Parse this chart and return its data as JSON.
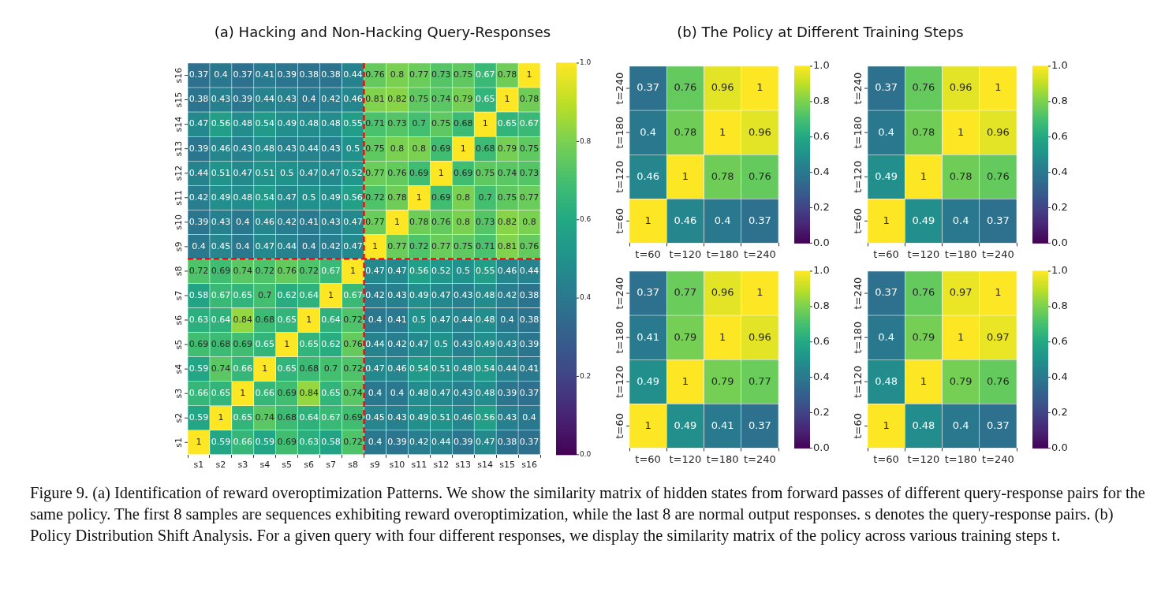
{
  "chart_data": [
    {
      "type": "heatmap",
      "title": "(a) Hacking and Non-Hacking Query-Responses",
      "categories": [
        "s1",
        "s2",
        "s3",
        "s4",
        "s5",
        "s6",
        "s7",
        "s8",
        "s9",
        "s10",
        "s11",
        "s12",
        "s13",
        "s14",
        "s15",
        "s16"
      ],
      "y_categories": [
        "s16",
        "s15",
        "s14",
        "s13",
        "s12",
        "s11",
        "s10",
        "s9",
        "s8",
        "s7",
        "s6",
        "s5",
        "s4",
        "s3",
        "s2",
        "s1"
      ],
      "cells": [
        [
          0.37,
          0.4,
          0.37,
          0.41,
          0.39,
          0.38,
          0.38,
          0.44,
          0.76,
          0.8,
          0.77,
          0.73,
          0.75,
          0.67,
          0.78,
          1
        ],
        [
          0.38,
          0.43,
          0.39,
          0.44,
          0.43,
          0.4,
          0.42,
          0.46,
          0.81,
          0.82,
          0.75,
          0.74,
          0.79,
          0.65,
          1,
          0.78
        ],
        [
          0.47,
          0.56,
          0.48,
          0.54,
          0.49,
          0.48,
          0.48,
          0.55,
          0.71,
          0.73,
          0.7,
          0.75,
          0.68,
          1,
          0.65,
          0.67
        ],
        [
          0.39,
          0.46,
          0.43,
          0.48,
          0.43,
          0.44,
          0.43,
          0.5,
          0.75,
          0.8,
          0.8,
          0.69,
          1,
          0.68,
          0.79,
          0.75
        ],
        [
          0.44,
          0.51,
          0.47,
          0.51,
          0.5,
          0.47,
          0.47,
          0.52,
          0.77,
          0.76,
          0.69,
          1,
          0.69,
          0.75,
          0.74,
          0.73
        ],
        [
          0.42,
          0.49,
          0.48,
          0.54,
          0.47,
          0.5,
          0.49,
          0.56,
          0.72,
          0.78,
          1,
          0.69,
          0.8,
          0.7,
          0.75,
          0.77
        ],
        [
          0.39,
          0.43,
          0.4,
          0.46,
          0.42,
          0.41,
          0.43,
          0.47,
          0.77,
          1,
          0.78,
          0.76,
          0.8,
          0.73,
          0.82,
          0.8
        ],
        [
          0.4,
          0.45,
          0.4,
          0.47,
          0.44,
          0.4,
          0.42,
          0.47,
          1,
          0.77,
          0.72,
          0.77,
          0.75,
          0.71,
          0.81,
          0.76
        ],
        [
          0.72,
          0.69,
          0.74,
          0.72,
          0.76,
          0.72,
          0.67,
          1,
          0.47,
          0.47,
          0.56,
          0.52,
          0.5,
          0.55,
          0.46,
          0.44
        ],
        [
          0.58,
          0.67,
          0.65,
          0.7,
          0.62,
          0.64,
          1,
          0.67,
          0.42,
          0.43,
          0.49,
          0.47,
          0.43,
          0.48,
          0.42,
          0.38
        ],
        [
          0.63,
          0.64,
          0.84,
          0.68,
          0.65,
          1,
          0.64,
          0.72,
          0.4,
          0.41,
          0.5,
          0.47,
          0.44,
          0.48,
          0.4,
          0.38
        ],
        [
          0.69,
          0.68,
          0.69,
          0.65,
          1,
          0.65,
          0.62,
          0.76,
          0.44,
          0.42,
          0.47,
          0.5,
          0.43,
          0.49,
          0.43,
          0.39
        ],
        [
          0.59,
          0.74,
          0.66,
          1,
          0.65,
          0.68,
          0.7,
          0.72,
          0.47,
          0.46,
          0.54,
          0.51,
          0.48,
          0.54,
          0.44,
          0.41
        ],
        [
          0.66,
          0.65,
          1,
          0.66,
          0.69,
          0.84,
          0.65,
          0.74,
          0.4,
          0.4,
          0.48,
          0.47,
          0.43,
          0.48,
          0.39,
          0.37
        ],
        [
          0.59,
          1,
          0.65,
          0.74,
          0.68,
          0.64,
          0.67,
          0.69,
          0.45,
          0.43,
          0.49,
          0.51,
          0.46,
          0.56,
          0.43,
          0.4
        ],
        [
          1,
          0.59,
          0.66,
          0.59,
          0.69,
          0.63,
          0.58,
          0.72,
          0.4,
          0.39,
          0.42,
          0.44,
          0.39,
          0.47,
          0.38,
          0.37
        ]
      ],
      "data_labels": true,
      "clim": [
        0,
        1
      ],
      "cticks": [
        {
          "value": 0,
          "label": "0.0"
        },
        {
          "value": 0.2,
          "label": "0.2"
        },
        {
          "value": 0.4,
          "label": "0.4"
        },
        {
          "value": 0.6,
          "label": "0.6"
        },
        {
          "value": 0.8,
          "label": "0.8"
        },
        {
          "value": 1,
          "label": "1.0"
        }
      ],
      "annotations": [
        "Figure 9. (a) Identification of reward overoptimization Patterns. We show the similarity matrix of hidden states from forward passes of different query-response pairs for the same policy. The first 8 samples are sequences exhibiting reward overoptimization, while the last 8 are normal output responses. s denotes the query-response pairs. (b) Policy Distribution Shift Analysis. For a given query with four different responses, we display the similarity matrix of the policy across various training steps t."
      ]
    },
    {
      "type": "heatmap",
      "title": "(b) The Policy at Different Training Steps",
      "categories": [
        "t=60",
        "t=120",
        "t=180",
        "t=240"
      ],
      "y_categories": [
        "t=240",
        "t=180",
        "t=120",
        "t=60"
      ],
      "cells": [
        [
          0.37,
          0.76,
          0.96,
          1
        ],
        [
          0.4,
          0.78,
          1,
          0.96
        ],
        [
          0.46,
          1,
          0.78,
          0.76
        ],
        [
          1,
          0.46,
          0.4,
          0.37
        ]
      ],
      "data_labels": true,
      "clim": [
        0,
        1
      ],
      "cticks": [
        {
          "value": 0,
          "label": "0.0"
        },
        {
          "value": 0.2,
          "label": "0.2"
        },
        {
          "value": 0.4,
          "label": "0.4"
        },
        {
          "value": 0.6,
          "label": "0.6"
        },
        {
          "value": 0.8,
          "label": "0.8"
        },
        {
          "value": 1,
          "label": "1.0"
        }
      ]
    },
    {
      "type": "heatmap",
      "categories": [
        "t=60",
        "t=120",
        "t=180",
        "t=240"
      ],
      "y_categories": [
        "t=240",
        "t=180",
        "t=120",
        "t=60"
      ],
      "cells": [
        [
          0.37,
          0.76,
          0.96,
          1
        ],
        [
          0.4,
          0.78,
          1,
          0.96
        ],
        [
          0.49,
          1,
          0.78,
          0.76
        ],
        [
          1,
          0.49,
          0.4,
          0.37
        ]
      ],
      "data_labels": true,
      "clim": [
        0,
        1
      ],
      "cticks": [
        {
          "value": 0,
          "label": "0.0"
        },
        {
          "value": 0.2,
          "label": "0.2"
        },
        {
          "value": 0.4,
          "label": "0.4"
        },
        {
          "value": 0.6,
          "label": "0.6"
        },
        {
          "value": 0.8,
          "label": "0.8"
        },
        {
          "value": 1,
          "label": "1.0"
        }
      ]
    },
    {
      "type": "heatmap",
      "categories": [
        "t=60",
        "t=120",
        "t=180",
        "t=240"
      ],
      "y_categories": [
        "t=240",
        "t=180",
        "t=120",
        "t=60"
      ],
      "cells": [
        [
          0.37,
          0.77,
          0.96,
          1
        ],
        [
          0.41,
          0.79,
          1,
          0.96
        ],
        [
          0.49,
          1,
          0.79,
          0.77
        ],
        [
          1,
          0.49,
          0.41,
          0.37
        ]
      ],
      "data_labels": true,
      "clim": [
        0,
        1
      ],
      "cticks": [
        {
          "value": 0,
          "label": "0.0"
        },
        {
          "value": 0.2,
          "label": "0.2"
        },
        {
          "value": 0.4,
          "label": "0.4"
        },
        {
          "value": 0.6,
          "label": "0.6"
        },
        {
          "value": 0.8,
          "label": "0.8"
        },
        {
          "value": 1,
          "label": "1.0"
        }
      ]
    },
    {
      "type": "heatmap",
      "categories": [
        "t=60",
        "t=120",
        "t=180",
        "t=240"
      ],
      "y_categories": [
        "t=240",
        "t=180",
        "t=120",
        "t=60"
      ],
      "cells": [
        [
          0.37,
          0.76,
          0.97,
          1
        ],
        [
          0.4,
          0.79,
          1,
          0.97
        ],
        [
          0.48,
          1,
          0.79,
          0.76
        ],
        [
          1,
          0.48,
          0.4,
          0.37
        ]
      ],
      "data_labels": true,
      "clim": [
        0,
        1
      ],
      "cticks": [
        {
          "value": 0,
          "label": "0.0"
        },
        {
          "value": 0.2,
          "label": "0.2"
        },
        {
          "value": 0.4,
          "label": "0.4"
        },
        {
          "value": 0.6,
          "label": "0.6"
        },
        {
          "value": 0.8,
          "label": "0.8"
        },
        {
          "value": 1,
          "label": "1.0"
        }
      ]
    }
  ]
}
